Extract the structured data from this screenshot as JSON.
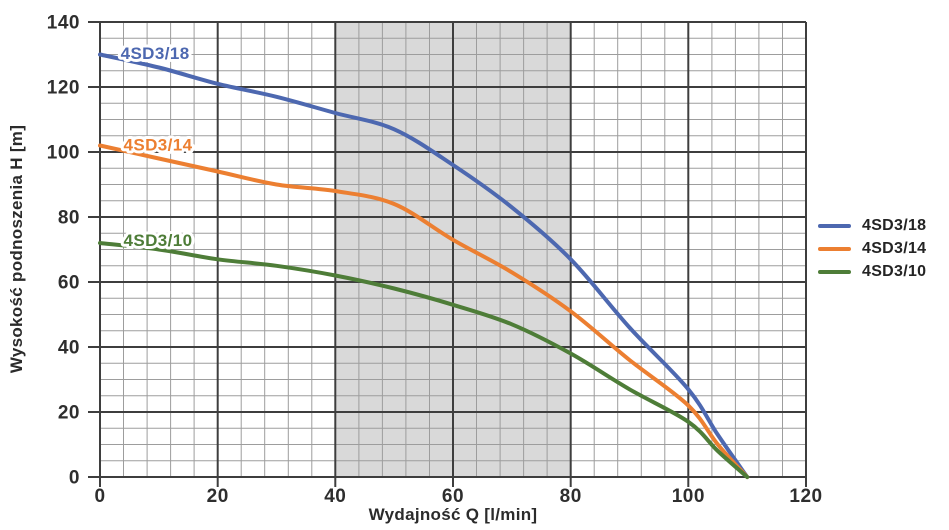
{
  "chart_data": {
    "type": "line",
    "title": "",
    "xlabel": "Wydajność Q [l/min]",
    "ylabel": "Wysokość podnoszenia H [m]",
    "xlim": [
      0,
      120
    ],
    "ylim": [
      0,
      140
    ],
    "x_major_ticks": [
      0,
      20,
      40,
      60,
      80,
      100,
      120
    ],
    "y_major_ticks": [
      0,
      20,
      40,
      60,
      80,
      100,
      120,
      140
    ],
    "minor_x_step": 4,
    "minor_y_step": 5,
    "grid": "on",
    "shaded_region": {
      "x0": 40,
      "x1": 80,
      "color": "#d9d9d9"
    },
    "x": [
      0,
      10,
      20,
      30,
      40,
      50,
      60,
      70,
      80,
      90,
      100,
      105,
      110
    ],
    "series": [
      {
        "name": "4SD3/18",
        "color": "#4d68b0",
        "values": [
          130,
          126,
          121,
          117,
          112,
          107,
          96,
          83,
          67,
          46,
          27,
          13,
          0
        ],
        "label_pos": {
          "x": 3.5,
          "y": 130.5
        }
      },
      {
        "name": "4SD3/14",
        "color": "#ec7f31",
        "values": [
          102,
          98,
          94,
          90,
          88,
          84,
          73,
          63,
          51,
          36,
          22,
          10,
          0
        ],
        "label_pos": {
          "x": 4,
          "y": 102.3
        }
      },
      {
        "name": "4SD3/10",
        "color": "#4e7d38",
        "values": [
          72,
          70,
          67,
          65,
          62,
          58,
          53,
          47,
          38,
          27,
          17,
          8,
          0
        ],
        "label_pos": {
          "x": 4,
          "y": 73
        }
      }
    ],
    "legend": {
      "position": "right",
      "entries": [
        "4SD3/18",
        "4SD3/14",
        "4SD3/10"
      ]
    },
    "style": {
      "minor_grid_color": "#9d9d9d",
      "major_grid_color": "#3e3e3e",
      "tick_label_color": "#2e2e2e",
      "curve_width": 4
    }
  }
}
